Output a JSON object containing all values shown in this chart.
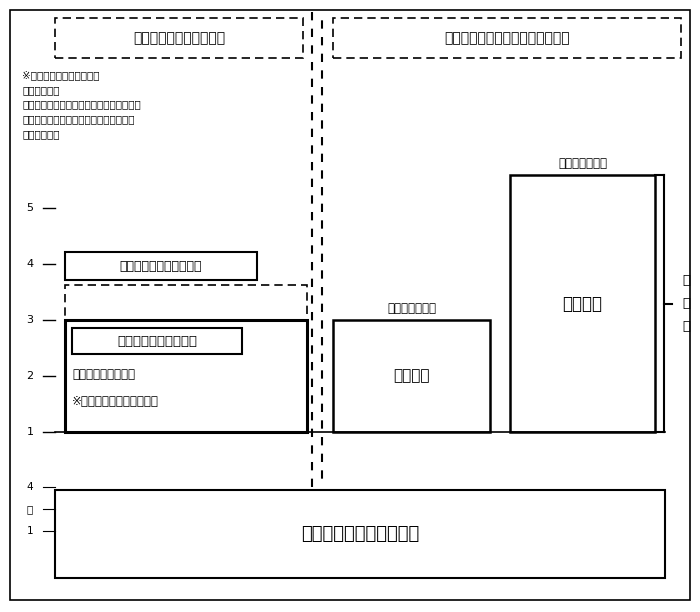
{
  "fig_width": 7.0,
  "fig_height": 6.12,
  "bg_color": "#ffffff",
  "top_box_left_text": "専ら高度専門職業人養成",
  "top_box_right_text": "研究者養成＋高度専門職業人養成",
  "annotation_lines": [
    "※研究指導を必修としない",
    "　専門的教育",
    "　３割の実務家教員（法科大学院は２割）",
    "　標準修業年限は２年が基本（法科大学",
    "　院は３年）"
  ],
  "senmon_label_box_text": "「専門職学位」（新設）",
  "senmon_main_bold": "専門職大学院（新設）",
  "senmon_sub1": "（専門職学位課程）",
  "senmon_sub2": "※法科大学院もこの一類型",
  "shushi_top_label": "「修士」の学位",
  "shushi_main": "修士課程",
  "hakushi_top_label": "「博士」の学位",
  "hakushi_main": "博士課程",
  "daigaku_label": "大学学部（学士の学位）",
  "daigakuin_label": "大\n学\n院",
  "ytick_vals": [
    1,
    2,
    3,
    4,
    5
  ],
  "ytick_bottom": [
    "4",
    "〜",
    "1"
  ]
}
